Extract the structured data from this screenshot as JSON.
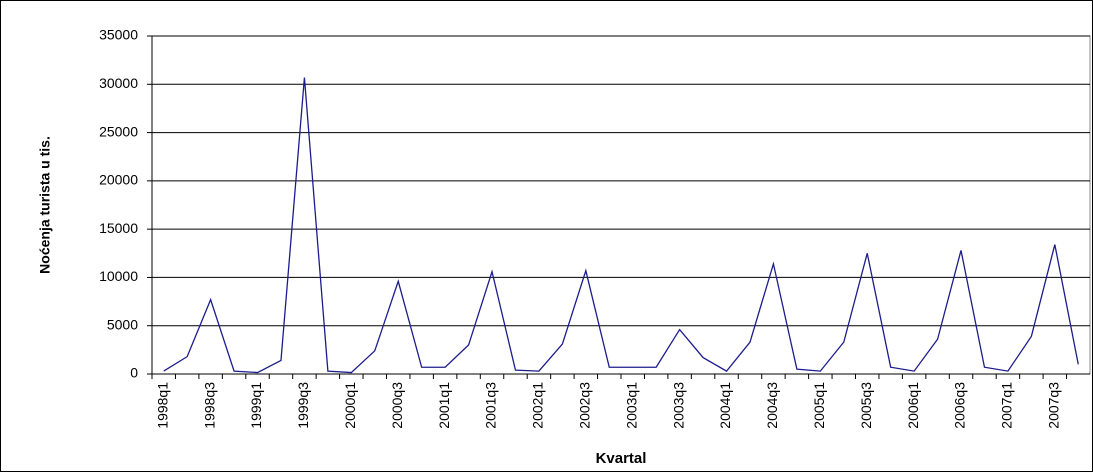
{
  "chart_data": {
    "type": "line",
    "y_label": "Noćenja turista u tis.",
    "x_label": "Kvartal",
    "categories": [
      "1998q1",
      null,
      "1998q3",
      null,
      "1999q1",
      null,
      "1999q3",
      null,
      "2000q1",
      null,
      "2000q3",
      null,
      "2001q1",
      null,
      "2001q3",
      null,
      "2002q1",
      null,
      "2002q3",
      null,
      "2003q1",
      null,
      "2003q3",
      null,
      "2004q1",
      null,
      "2004q3",
      null,
      "2005q1",
      null,
      "2005q3",
      null,
      "2006q1",
      null,
      "2006q3",
      null,
      "2007q1",
      null,
      "2007q3",
      null
    ],
    "values": [
      300,
      1800,
      7700,
      300,
      150,
      1400,
      30700,
      300,
      150,
      2400,
      9600,
      700,
      700,
      3000,
      10600,
      400,
      300,
      3100,
      10700,
      700,
      700,
      700,
      4600,
      1700,
      300,
      3300,
      11400,
      500,
      300,
      3300,
      12500,
      700,
      300,
      3600,
      12800,
      700,
      300,
      3900,
      13400,
      1000
    ],
    "color": "#1c1c8c",
    "ylim": [
      0,
      35000
    ],
    "yticks": [
      0,
      5000,
      10000,
      15000,
      20000,
      25000,
      30000,
      35000
    ],
    "grid": true
  }
}
